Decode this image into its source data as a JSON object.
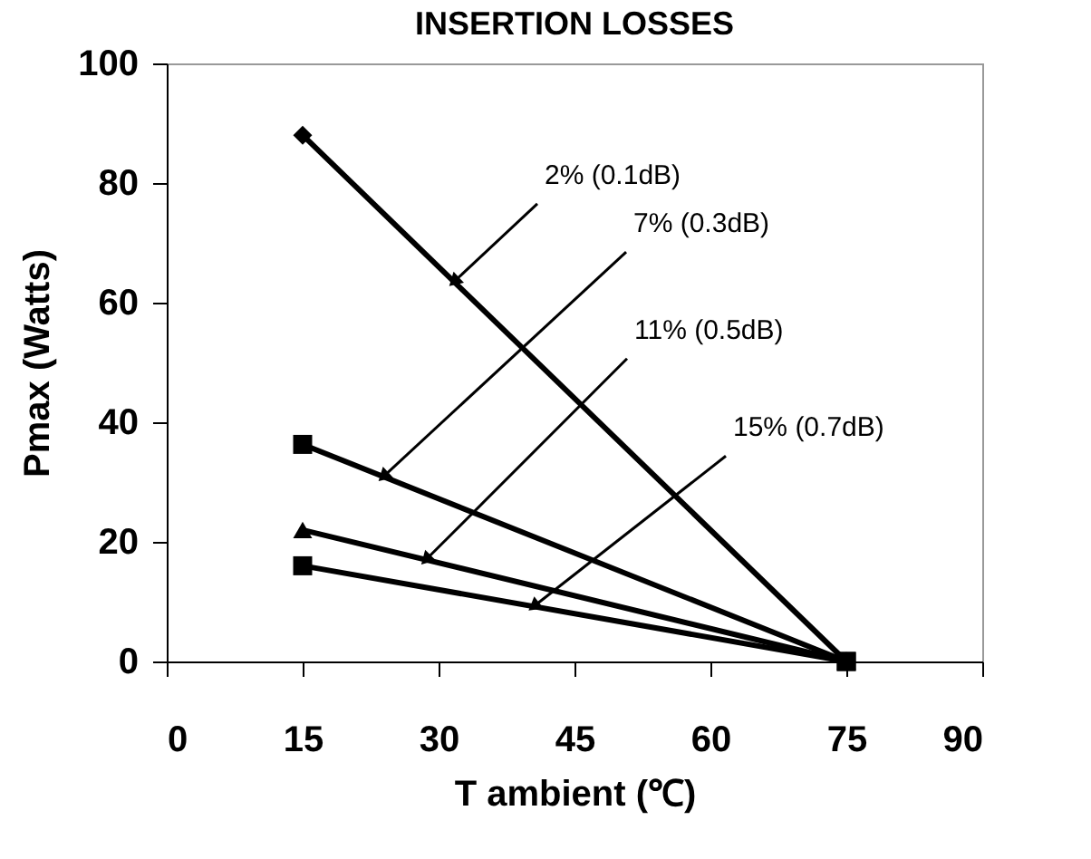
{
  "chart_data": {
    "type": "line",
    "title": "INSERTION LOSSES",
    "xlabel": "T ambient (℃)",
    "ylabel": "Pmax (Watts)",
    "x": [
      15,
      75
    ],
    "series": [
      {
        "color": "#000000",
        "values": [
          88,
          0
        ],
        "marker": "diamond"
      },
      {
        "color": "#000000",
        "values": [
          36.3,
          0
        ],
        "marker": "square"
      },
      {
        "color": "#000000",
        "values": [
          22,
          0
        ],
        "marker": "triangle"
      },
      {
        "color": "#000000",
        "values": [
          16,
          0
        ],
        "marker": "square"
      }
    ],
    "annotations": [
      {
        "text": "2% (0.1dB)",
        "x": 31.7,
        "y": 63.5
      },
      {
        "text": "7% (0.3dB)",
        "x": 23.9,
        "y": 30.9
      },
      {
        "text": "11% (0.5dB)",
        "x": 28.6,
        "y": 17.0
      },
      {
        "text": "15% (0.7dB)",
        "x": 40.5,
        "y": 9.2
      }
    ],
    "xlim": [
      0,
      90
    ],
    "xticks": [
      0,
      15,
      30,
      45,
      60,
      75,
      90
    ],
    "ylim": [
      0,
      100
    ],
    "yticks": [
      0,
      20,
      40,
      60,
      80,
      100
    ],
    "grid": false,
    "line_style": "solid"
  }
}
